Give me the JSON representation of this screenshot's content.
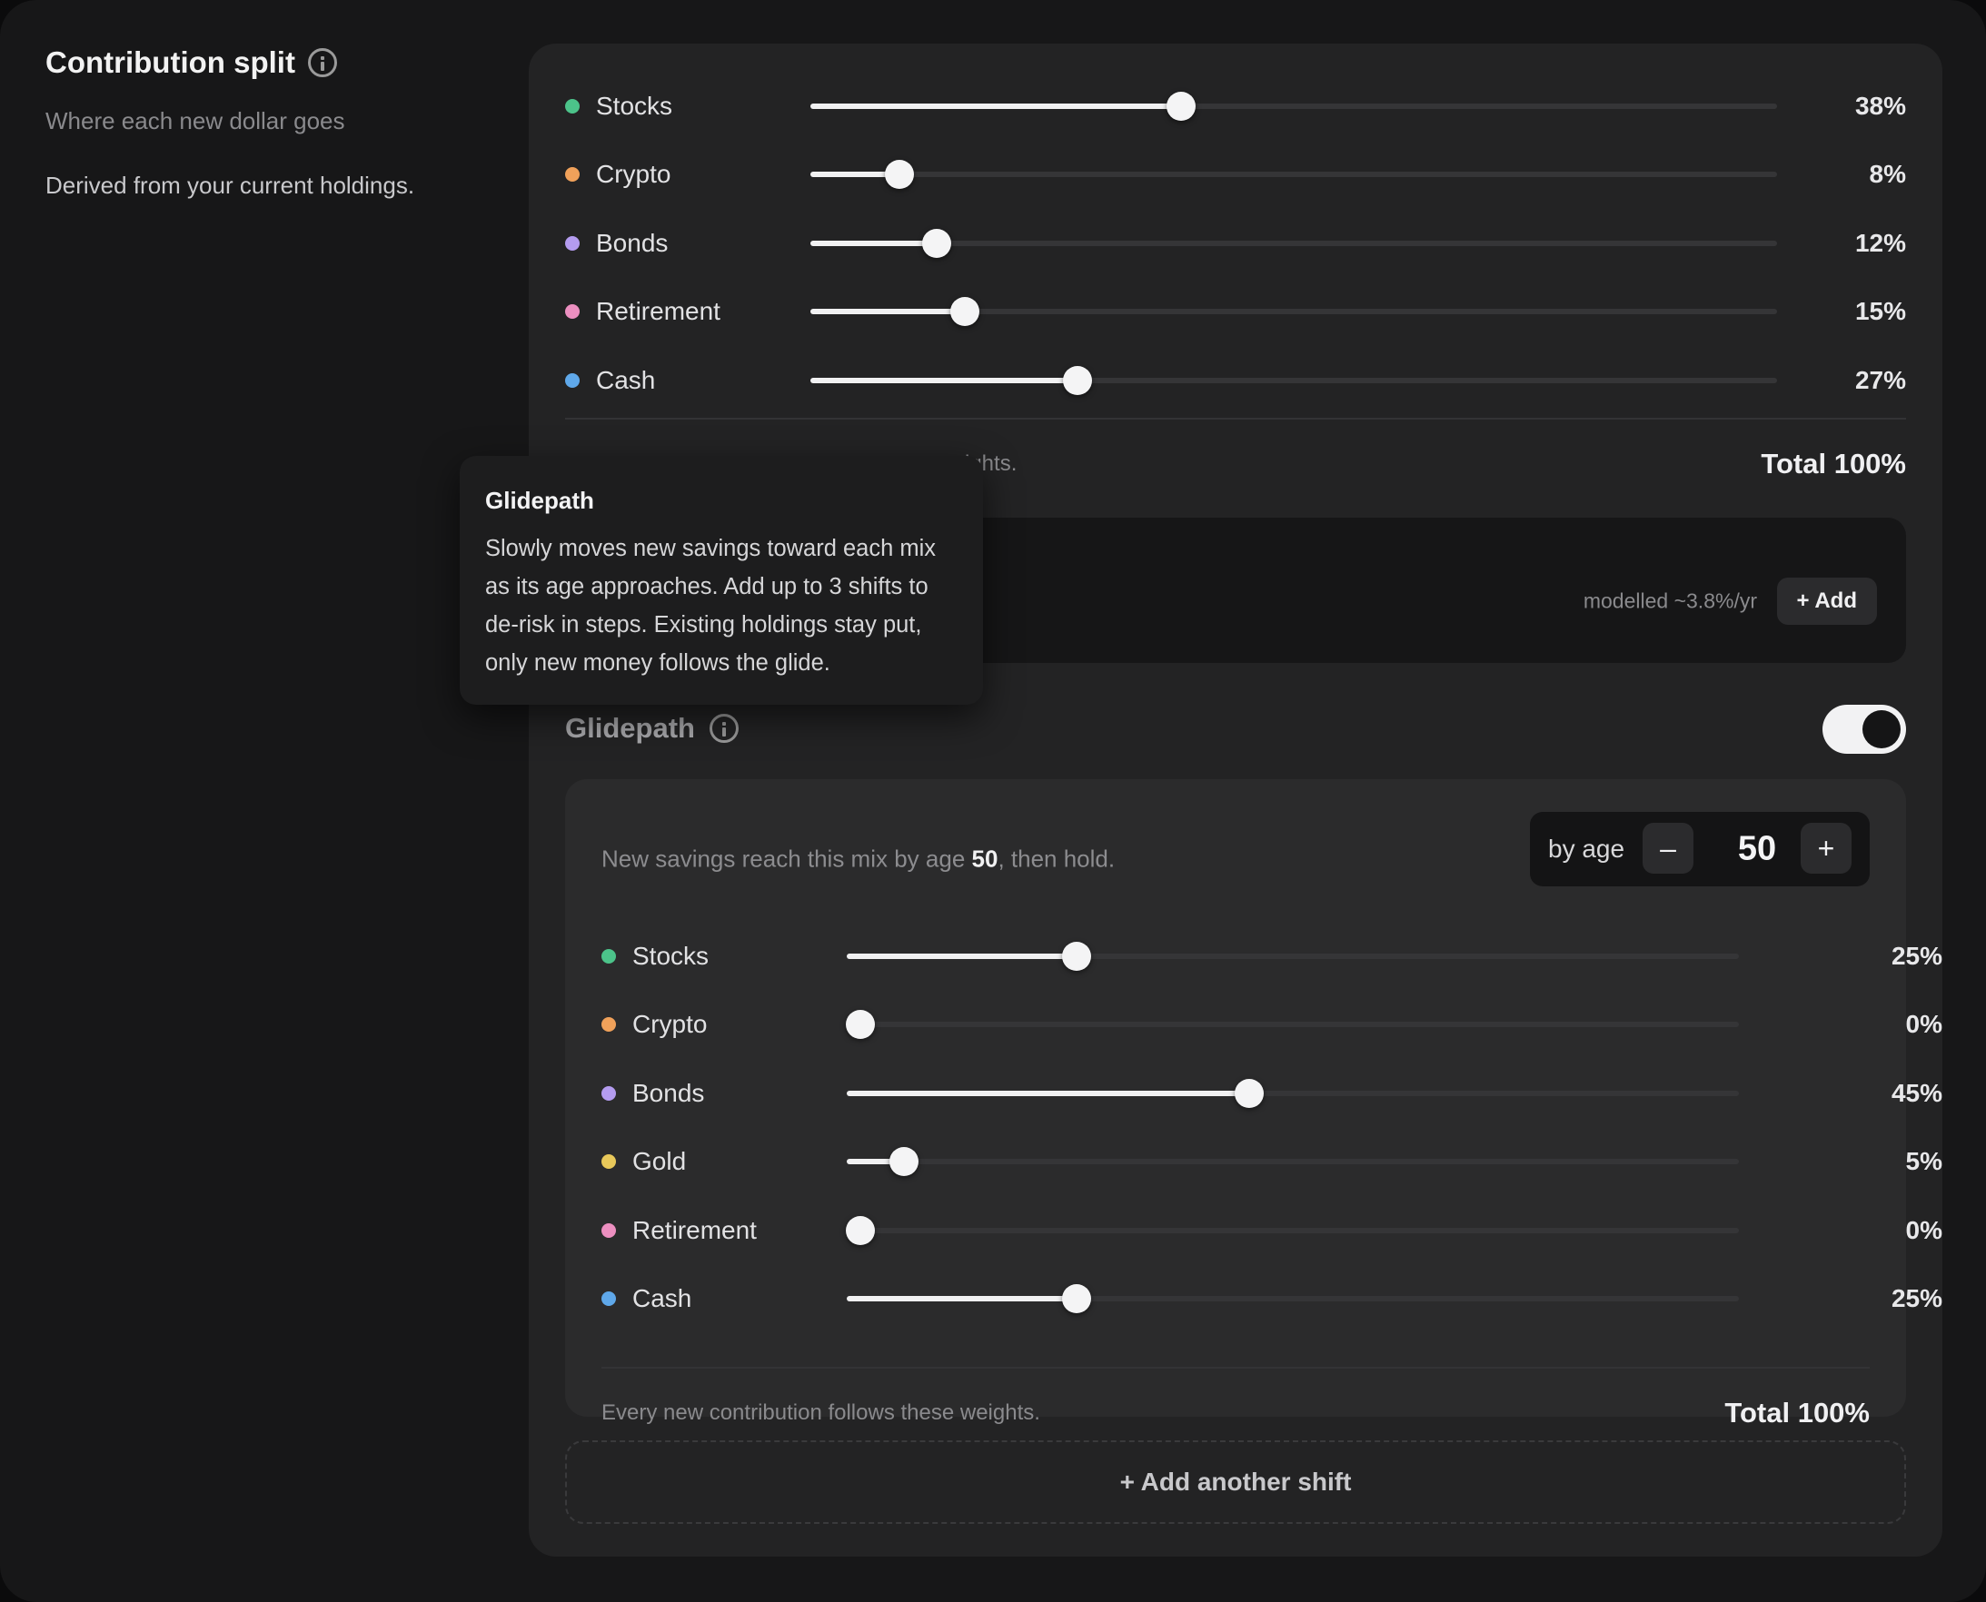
{
  "section": {
    "title": "Contribution split",
    "subtitle": "Where each new dollar goes",
    "note": "Derived from your current holdings."
  },
  "current_mix": {
    "rows": [
      {
        "name": "Stocks",
        "percent": "38%",
        "value": 38,
        "color": "#4cc38a"
      },
      {
        "name": "Crypto",
        "percent": "8%",
        "value": 8,
        "color": "#f0a15a"
      },
      {
        "name": "Bonds",
        "percent": "12%",
        "value": 12,
        "color": "#b49cf0"
      },
      {
        "name": "Retirement",
        "percent": "15%",
        "value": 15,
        "color": "#ec8fc0"
      },
      {
        "name": "Cash",
        "percent": "27%",
        "value": 27,
        "color": "#5fa8ea"
      }
    ],
    "footer_hint_visible": "ights.",
    "total": "Total 100%"
  },
  "panel": {
    "modelled": "modelled ~3.8%/yr",
    "add_label": "+ Add"
  },
  "glidepath": {
    "title": "Glidepath",
    "toggle_on": true,
    "desc_prefix": "New savings reach this mix by age ",
    "desc_age": "50",
    "desc_suffix": ", then hold.",
    "stepper": {
      "label": "by age",
      "minus": "–",
      "value": "50",
      "plus": "+"
    },
    "rows": [
      {
        "name": "Stocks",
        "percent": "25%",
        "value": 25,
        "color": "#4cc38a"
      },
      {
        "name": "Crypto",
        "percent": "0%",
        "value": 0,
        "color": "#f0a15a"
      },
      {
        "name": "Bonds",
        "percent": "45%",
        "value": 45,
        "color": "#b49cf0"
      },
      {
        "name": "Gold",
        "percent": "5%",
        "value": 5,
        "color": "#e8c85a"
      },
      {
        "name": "Retirement",
        "percent": "0%",
        "value": 0,
        "color": "#ec8fc0"
      },
      {
        "name": "Cash",
        "percent": "25%",
        "value": 25,
        "color": "#5fa8ea"
      }
    ],
    "footer_hint": "Every new contribution follows these weights.",
    "total": "Total 100%",
    "add_shift": "+ Add another shift"
  },
  "tooltip": {
    "title": "Glidepath",
    "body": "Slowly moves new savings toward each mix as its age approaches. Add up to 3 shifts to de-risk in steps. Existing holdings stay put, only new money follows the glide."
  }
}
